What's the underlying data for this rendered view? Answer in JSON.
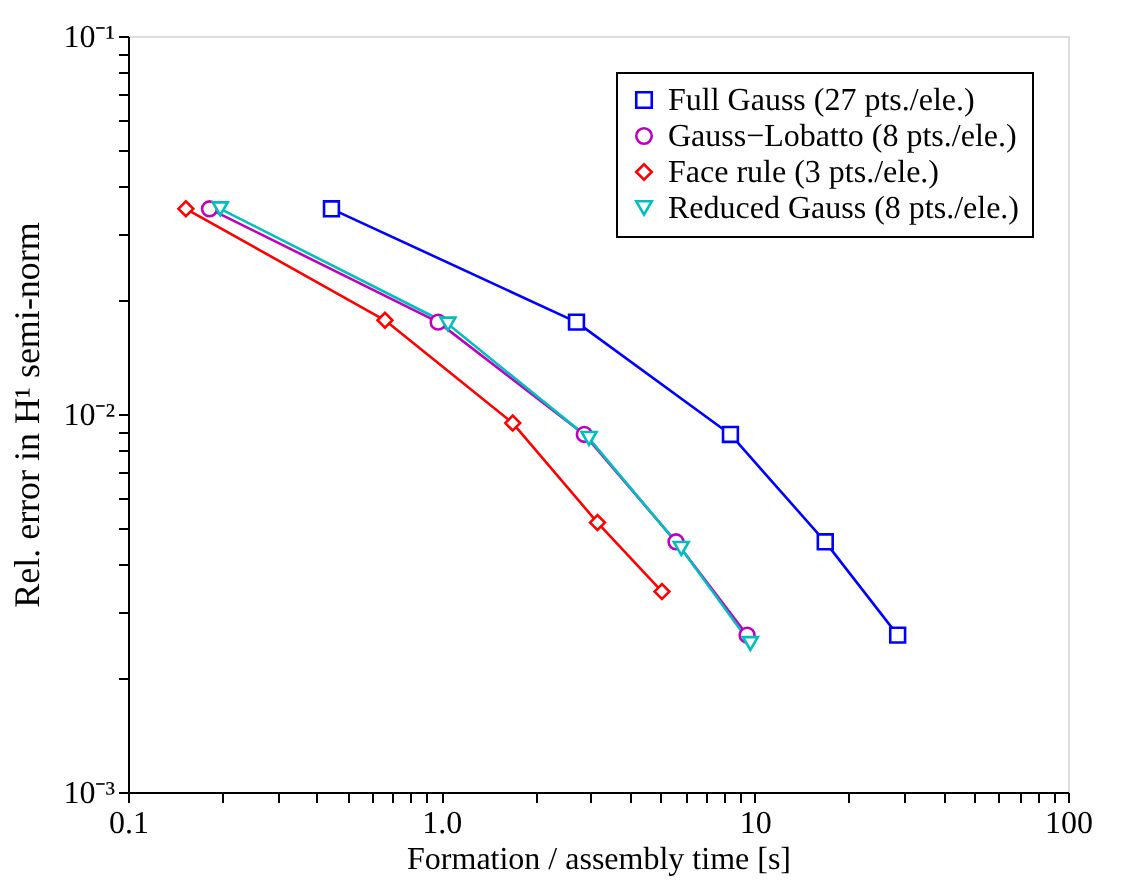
{
  "chart_data": {
    "type": "line",
    "xlabel": "Formation / assembly time [s]",
    "ylabel": "Rel. error in H¹ semi-norm",
    "log": "xy",
    "grid": false,
    "legend": "top right",
    "line_style": "solid",
    "xlim": [
      0.1,
      100
    ],
    "ylim": [
      0.001,
      0.1
    ],
    "xticks": [
      0.1,
      {
        "value": 0.2,
        "label": null
      },
      {
        "value": 0.3,
        "label": null
      },
      {
        "value": 0.4,
        "label": null
      },
      {
        "value": 0.5,
        "label": null
      },
      {
        "value": 0.6,
        "label": null
      },
      {
        "value": 0.7,
        "label": null
      },
      {
        "value": 0.8,
        "label": null
      },
      {
        "value": 0.9,
        "label": null
      },
      {
        "value": 1,
        "label": "1.0"
      },
      {
        "value": 2,
        "label": null
      },
      {
        "value": 3,
        "label": null
      },
      {
        "value": 4,
        "label": null
      },
      {
        "value": 5,
        "label": null
      },
      {
        "value": 6,
        "label": null
      },
      {
        "value": 7,
        "label": null
      },
      {
        "value": 8,
        "label": null
      },
      {
        "value": 9,
        "label": null
      },
      10,
      {
        "value": 20,
        "label": null
      },
      {
        "value": 30,
        "label": null
      },
      {
        "value": 40,
        "label": null
      },
      {
        "value": 50,
        "label": null
      },
      {
        "value": 60,
        "label": null
      },
      {
        "value": 70,
        "label": null
      },
      {
        "value": 80,
        "label": null
      },
      {
        "value": 90,
        "label": null
      },
      100
    ],
    "yticks": [
      {
        "value": 0.001,
        "label": "10⁻³"
      },
      {
        "value": 0.002,
        "label": null
      },
      {
        "value": 0.003,
        "label": null
      },
      {
        "value": 0.004,
        "label": null
      },
      {
        "value": 0.005,
        "label": null
      },
      {
        "value": 0.006,
        "label": null
      },
      {
        "value": 0.007,
        "label": null
      },
      {
        "value": 0.008,
        "label": null
      },
      {
        "value": 0.009,
        "label": null
      },
      {
        "value": 0.01,
        "label": "10⁻²"
      },
      {
        "value": 0.02,
        "label": null
      },
      {
        "value": 0.03,
        "label": null
      },
      {
        "value": 0.04,
        "label": null
      },
      {
        "value": 0.05,
        "label": null
      },
      {
        "value": 0.06,
        "label": null
      },
      {
        "value": 0.07,
        "label": null
      },
      {
        "value": 0.08,
        "label": null
      },
      {
        "value": 0.09,
        "label": null
      },
      {
        "value": 0.1,
        "label": "10⁻¹"
      }
    ],
    "series": [
      {
        "name": "Full Gauss (27 pts./ele.)",
        "color": "#0000ff",
        "marker": "square",
        "x": [
          0.446,
          2.7,
          8.37,
          16.8,
          28.6
        ],
        "values": [
          0.0349,
          0.0175,
          0.00883,
          0.00459,
          0.0026
        ]
      },
      {
        "name": "Gauss−Lobatto (8 pts./ele.)",
        "color": "#bf00bf",
        "marker": "circle",
        "x": [
          0.182,
          0.977,
          2.86,
          5.61,
          9.46
        ],
        "values": [
          0.0349,
          0.0175,
          0.00883,
          0.00459,
          0.0026
        ]
      },
      {
        "name": "Face rule (3 pts./ele.)",
        "color": "#ff0000",
        "marker": "diamond",
        "x": [
          0.153,
          0.661,
          1.69,
          3.15,
          5.06
        ],
        "values": [
          0.0349,
          0.0177,
          0.00946,
          0.00516,
          0.00339
        ]
      },
      {
        "name": "Reduced Gauss (8 pts./ele.)",
        "color": "#00bfbf",
        "marker": "triangle",
        "x": [
          0.197,
          1.05,
          2.96,
          5.83,
          9.69
        ],
        "values": [
          0.0349,
          0.0173,
          0.00862,
          0.00441,
          0.00247
        ]
      }
    ]
  }
}
